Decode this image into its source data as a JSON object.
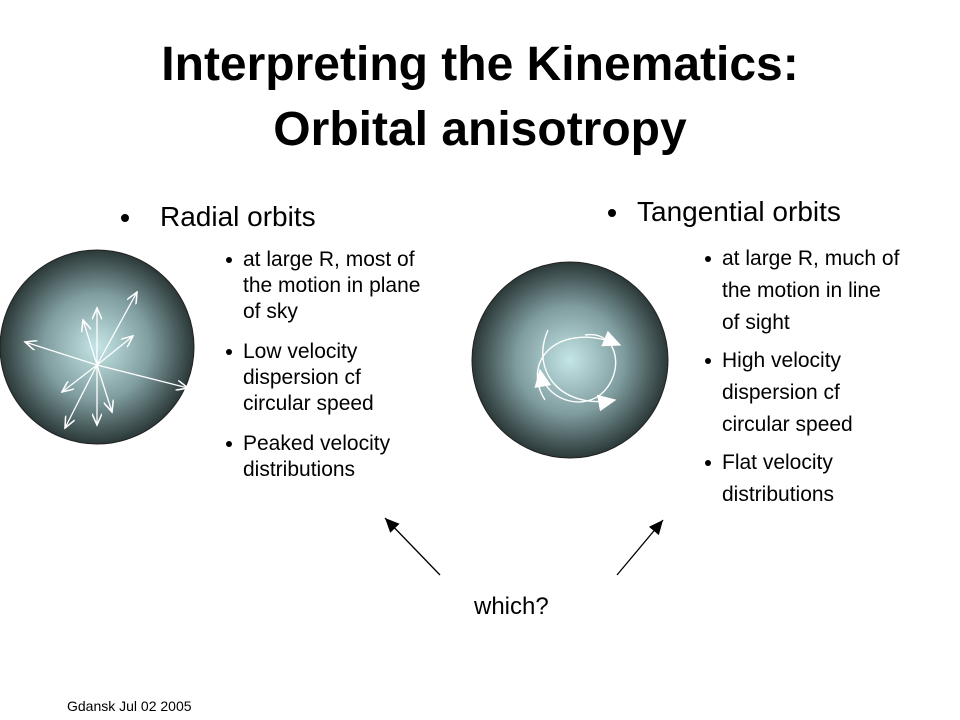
{
  "title": [
    "Interpreting the Kinematics:",
    "Orbital anisotropy"
  ],
  "columns": [
    {
      "heading": "Radial orbits",
      "bullets": [
        [
          "at large R, most of",
          "the motion in plane",
          "of sky"
        ],
        [
          "Low velocity",
          "dispersion cf",
          "circular speed"
        ],
        [
          "Peaked velocity",
          "distributions"
        ]
      ]
    },
    {
      "heading": "Tangential orbits",
      "bullets": [
        [
          "at large R, much of",
          "the motion in line",
          "of sight"
        ],
        [
          "High velocity",
          "dispersion cf",
          "circular speed"
        ],
        [
          "Flat velocity",
          "distributions"
        ]
      ]
    }
  ],
  "prompt": "which?",
  "footer": "Gdansk Jul 02 2005"
}
